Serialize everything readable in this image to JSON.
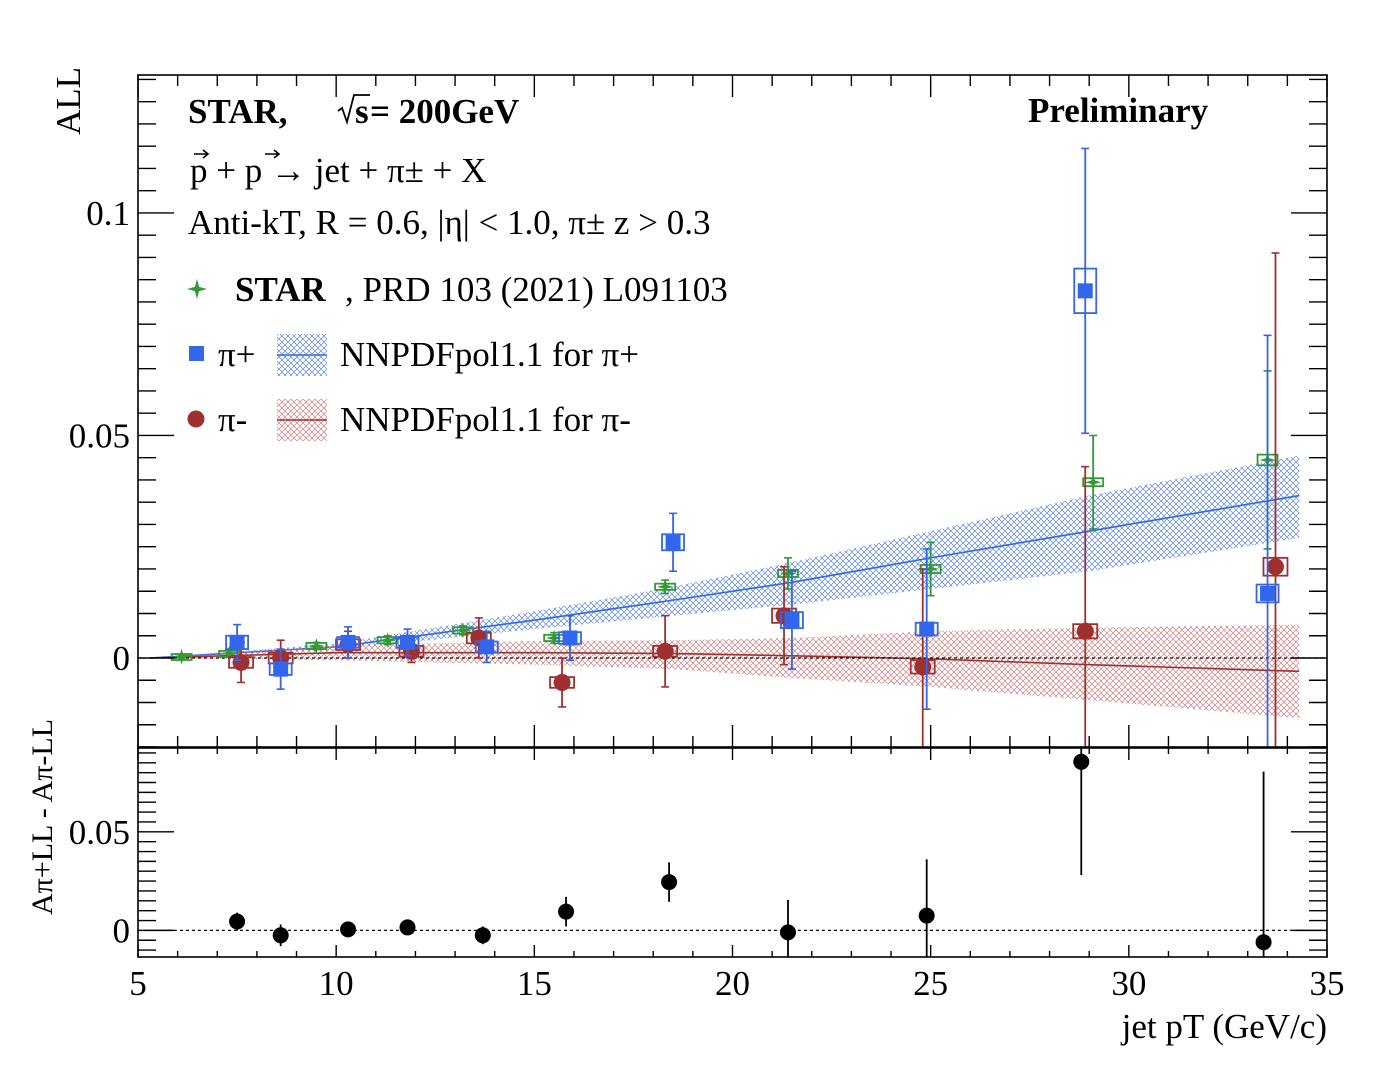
{
  "colors": {
    "pi_plus": "#3366ee",
    "pi_minus": "#a03030",
    "star": "#339933",
    "diff": "#000000"
  },
  "header": {
    "experiment": "STAR,",
    "sqrt_s": "s",
    "energy": " = 200GeV",
    "preliminary": "Preliminary",
    "reaction": "p + p → jet + π± + X",
    "cuts": "Anti-kT, R = 0.6, |η| < 1.0, π± z > 0.3"
  },
  "legend": {
    "star_bold": "STAR",
    "star_ref": ", PRD 103 (2021) L091103",
    "pi_plus": "π+",
    "pi_minus": "π-",
    "nnpdf_plus": "NNPDFpol1.1 for  π+",
    "nnpdf_minus": "NNPDFpol1.1 for  π-"
  },
  "axes": {
    "top_ylabel": "ALL",
    "bottom_ylabel": "Aπ+LL - Aπ-LL",
    "xlabel": "jet pT (GeV/c)",
    "x_ticks": [
      "5",
      "10",
      "15",
      "20",
      "25",
      "30",
      "35"
    ],
    "top_y_ticks": [
      "0",
      "0.05",
      "0.1"
    ],
    "bottom_y_ticks": [
      "0",
      "0.05"
    ]
  },
  "chart_data": [
    {
      "type": "scatter",
      "panel": "top",
      "xlim": [
        5,
        35
      ],
      "ylim": [
        -0.02,
        0.131
      ],
      "series": [
        {
          "name": "π+",
          "marker": "square",
          "points": [
            {
              "x": 7.5,
              "y": 0.0035,
              "err": 0.004,
              "sys": 0.0015
            },
            {
              "x": 8.6,
              "y": -0.0025,
              "err": 0.0045,
              "sys": 0.0013
            },
            {
              "x": 10.3,
              "y": 0.0035,
              "err": 0.0035,
              "sys": 0.0012
            },
            {
              "x": 11.8,
              "y": 0.0035,
              "err": 0.003,
              "sys": 0.0012
            },
            {
              "x": 13.8,
              "y": 0.0025,
              "err": 0.0035,
              "sys": 0.0012
            },
            {
              "x": 15.9,
              "y": 0.0045,
              "err": 0.005,
              "sys": 0.0013
            },
            {
              "x": 18.5,
              "y": 0.026,
              "err": 0.0065,
              "sys": 0.0018
            },
            {
              "x": 21.5,
              "y": 0.0085,
              "err": 0.011,
              "sys": 0.0018
            },
            {
              "x": 24.9,
              "y": 0.0065,
              "err": 0.018,
              "sys": 0.0014
            },
            {
              "x": 28.9,
              "y": 0.0825,
              "err": 0.032,
              "sys": 0.005
            },
            {
              "x": 33.5,
              "y": 0.0145,
              "err": 0.058,
              "sys": 0.002
            }
          ]
        },
        {
          "name": "π-",
          "marker": "circle",
          "points": [
            {
              "x": 7.6,
              "y": -0.001,
              "err": 0.0045,
              "sys": 0.0012
            },
            {
              "x": 8.6,
              "y": 0.0,
              "err": 0.004,
              "sys": 0.0012
            },
            {
              "x": 10.3,
              "y": 0.003,
              "err": 0.003,
              "sys": 0.0012
            },
            {
              "x": 11.9,
              "y": 0.0015,
              "err": 0.0025,
              "sys": 0.0012
            },
            {
              "x": 13.6,
              "y": 0.0045,
              "err": 0.0045,
              "sys": 0.0012
            },
            {
              "x": 15.7,
              "y": -0.0055,
              "err": 0.0055,
              "sys": 0.0012
            },
            {
              "x": 18.3,
              "y": 0.0015,
              "err": 0.008,
              "sys": 0.0012
            },
            {
              "x": 21.3,
              "y": 0.0095,
              "err": 0.011,
              "sys": 0.0016
            },
            {
              "x": 24.8,
              "y": -0.002,
              "err": 0.022,
              "sys": 0.0015
            },
            {
              "x": 28.9,
              "y": 0.006,
              "err": 0.037,
              "sys": 0.0016
            },
            {
              "x": 33.7,
              "y": 0.0205,
              "err": 0.0705,
              "sys": 0.002
            }
          ]
        },
        {
          "name": "STAR, PRD 103 (2021) L091103",
          "marker": "star",
          "points": [
            {
              "x": 6.1,
              "y": 0.0003,
              "err": 0.0005,
              "sys": 0.0006
            },
            {
              "x": 7.3,
              "y": 0.001,
              "err": 0.0008,
              "sys": 0.0006
            },
            {
              "x": 9.5,
              "y": 0.0027,
              "err": 0.0008,
              "sys": 0.0007
            },
            {
              "x": 11.3,
              "y": 0.004,
              "err": 0.001,
              "sys": 0.0007
            },
            {
              "x": 13.2,
              "y": 0.0062,
              "err": 0.001,
              "sys": 0.0007
            },
            {
              "x": 15.5,
              "y": 0.0045,
              "err": 0.0012,
              "sys": 0.0007
            },
            {
              "x": 18.3,
              "y": 0.016,
              "err": 0.0015,
              "sys": 0.0007
            },
            {
              "x": 21.4,
              "y": 0.019,
              "err": 0.0035,
              "sys": 0.0008
            },
            {
              "x": 25.0,
              "y": 0.02,
              "err": 0.006,
              "sys": 0.0009
            },
            {
              "x": 29.1,
              "y": 0.0395,
              "err": 0.0105,
              "sys": 0.0009
            },
            {
              "x": 33.5,
              "y": 0.0445,
              "err": 0.02,
              "sys": 0.0012
            }
          ]
        }
      ],
      "bands": [
        {
          "name": "NNPDFpol1.1 for  π+",
          "x": [
            5.3,
            10,
            15,
            18.5,
            21.5,
            25,
            29,
            34.3
          ],
          "y": [
            0.0,
            0.0025,
            0.0085,
            0.013,
            0.017,
            0.0225,
            0.0285,
            0.0365
          ],
          "lo": [
            0.0,
            0.0018,
            0.0065,
            0.0095,
            0.012,
            0.0155,
            0.0195,
            0.027
          ],
          "hi": [
            0.0,
            0.0032,
            0.0105,
            0.016,
            0.0215,
            0.0285,
            0.0365,
            0.0455
          ]
        },
        {
          "name": "NNPDFpol1.1 for  π-",
          "x": [
            5.3,
            10,
            15,
            18.5,
            21.5,
            25,
            29,
            34.3
          ],
          "y": [
            0.0,
            0.0012,
            0.0012,
            0.001,
            0.0005,
            -0.0002,
            -0.0015,
            -0.003
          ],
          "lo": [
            0.0,
            -0.0005,
            -0.0015,
            -0.0025,
            -0.0045,
            -0.0065,
            -0.0095,
            -0.0135
          ],
          "hi": [
            0.0,
            0.0028,
            0.0038,
            0.004,
            0.0045,
            0.006,
            0.0068,
            0.0075
          ]
        }
      ]
    },
    {
      "type": "scatter",
      "panel": "bottom",
      "xlim": [
        5,
        35
      ],
      "ylim": [
        -0.0135,
        0.0925
      ],
      "series": [
        {
          "name": "Aπ+LL - Aπ-LL",
          "points": [
            {
              "x": 7.5,
              "y": 0.0045,
              "err": 0.0045
            },
            {
              "x": 8.6,
              "y": -0.0025,
              "err": 0.0055
            },
            {
              "x": 10.3,
              "y": 0.0005,
              "err": 0.003
            },
            {
              "x": 11.8,
              "y": 0.0015,
              "err": 0.0035
            },
            {
              "x": 13.7,
              "y": -0.0025,
              "err": 0.0045
            },
            {
              "x": 15.8,
              "y": 0.0095,
              "err": 0.0075
            },
            {
              "x": 18.4,
              "y": 0.0245,
              "err": 0.01
            },
            {
              "x": 21.4,
              "y": -0.001,
              "err": 0.0165
            },
            {
              "x": 24.9,
              "y": 0.0075,
              "err": 0.0285
            },
            {
              "x": 28.8,
              "y": 0.0855,
              "err": 0.0575
            },
            {
              "x": 33.4,
              "y": -0.006,
              "err": 0.0865
            }
          ]
        }
      ]
    }
  ]
}
